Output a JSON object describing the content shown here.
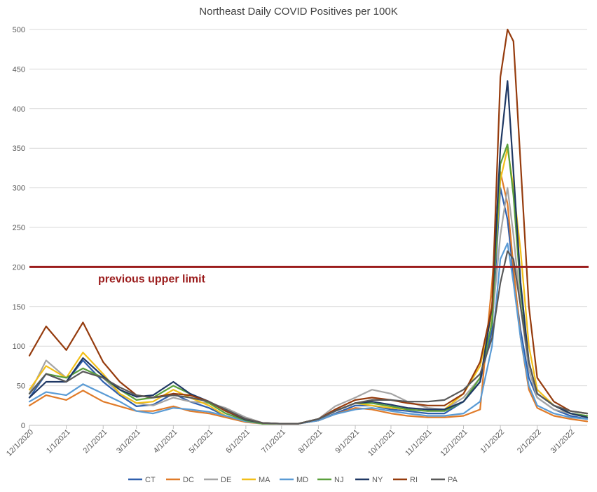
{
  "chart_data": {
    "type": "line",
    "title": "Northeast Daily COVID Positives per 100K",
    "xlabel": "",
    "ylabel": "",
    "ylim": [
      0,
      500
    ],
    "yticks": [
      0,
      50,
      100,
      150,
      200,
      250,
      300,
      350,
      400,
      450,
      500
    ],
    "xlim": [
      "2020-12-01",
      "2022-03-15"
    ],
    "xticks": [
      "12/1/2020",
      "1/1/2021",
      "2/1/2021",
      "3/1/2021",
      "4/1/2021",
      "5/1/2021",
      "6/1/2021",
      "7/1/2021",
      "8/1/2021",
      "9/1/2021",
      "10/1/2021",
      "11/1/2021",
      "12/1/2021",
      "1/1/2022",
      "2/1/2022",
      "3/1/2022"
    ],
    "grid": true,
    "legend_position": "bottom",
    "annotation": {
      "text": "previous upper limit",
      "y": 200,
      "color": "#9b1c1c"
    },
    "x": [
      "2020-12-01",
      "2020-12-15",
      "2021-01-01",
      "2021-01-15",
      "2021-02-01",
      "2021-02-15",
      "2021-03-01",
      "2021-03-15",
      "2021-04-01",
      "2021-04-15",
      "2021-05-01",
      "2021-05-15",
      "2021-06-01",
      "2021-06-15",
      "2021-07-01",
      "2021-07-15",
      "2021-08-01",
      "2021-08-15",
      "2021-09-01",
      "2021-09-15",
      "2021-10-01",
      "2021-10-15",
      "2021-11-01",
      "2021-11-15",
      "2021-12-01",
      "2021-12-15",
      "2021-12-25",
      "2022-01-01",
      "2022-01-07",
      "2022-01-12",
      "2022-01-18",
      "2022-01-25",
      "2022-02-01",
      "2022-02-15",
      "2022-03-01",
      "2022-03-15"
    ],
    "series": [
      {
        "name": "CT",
        "color": "#2e5fad",
        "values": [
          35,
          65,
          55,
          82,
          55,
          38,
          24,
          26,
          40,
          30,
          22,
          12,
          5,
          2,
          2,
          2,
          6,
          15,
          25,
          25,
          20,
          18,
          15,
          15,
          30,
          55,
          120,
          300,
          260,
          190,
          120,
          60,
          35,
          20,
          12,
          8
        ]
      },
      {
        "name": "DC",
        "color": "#e07b29",
        "values": [
          25,
          38,
          32,
          44,
          30,
          24,
          18,
          18,
          24,
          18,
          15,
          10,
          4,
          2,
          2,
          2,
          6,
          14,
          22,
          20,
          15,
          12,
          10,
          10,
          12,
          20,
          180,
          320,
          280,
          200,
          110,
          45,
          22,
          12,
          8,
          5
        ]
      },
      {
        "name": "DE",
        "color": "#a5a5a5",
        "values": [
          40,
          82,
          60,
          72,
          60,
          40,
          28,
          25,
          35,
          30,
          28,
          22,
          10,
          3,
          2,
          2,
          8,
          24,
          35,
          45,
          40,
          30,
          22,
          20,
          35,
          60,
          130,
          240,
          300,
          240,
          150,
          70,
          35,
          20,
          15,
          12
        ]
      },
      {
        "name": "MA",
        "color": "#f2bf1a",
        "values": [
          45,
          75,
          60,
          92,
          65,
          40,
          28,
          30,
          45,
          35,
          25,
          12,
          5,
          2,
          2,
          2,
          8,
          18,
          28,
          25,
          22,
          20,
          18,
          20,
          40,
          75,
          140,
          310,
          350,
          300,
          220,
          100,
          45,
          25,
          15,
          10
        ]
      },
      {
        "name": "MD",
        "color": "#5a9bd5",
        "values": [
          30,
          42,
          38,
          52,
          40,
          30,
          18,
          15,
          22,
          20,
          17,
          12,
          5,
          2,
          2,
          2,
          6,
          14,
          20,
          22,
          18,
          15,
          12,
          12,
          15,
          30,
          100,
          210,
          230,
          180,
          110,
          50,
          25,
          15,
          10,
          8
        ]
      },
      {
        "name": "NJ",
        "color": "#5aa03c",
        "values": [
          40,
          65,
          60,
          72,
          60,
          45,
          32,
          35,
          50,
          40,
          28,
          15,
          6,
          2,
          2,
          2,
          8,
          18,
          28,
          28,
          24,
          20,
          18,
          18,
          30,
          60,
          130,
          330,
          355,
          290,
          170,
          80,
          40,
          25,
          15,
          12
        ]
      },
      {
        "name": "NY",
        "color": "#1f3864",
        "values": [
          35,
          55,
          55,
          85,
          62,
          45,
          36,
          38,
          55,
          40,
          30,
          18,
          7,
          3,
          2,
          2,
          8,
          18,
          28,
          30,
          26,
          22,
          20,
          20,
          30,
          55,
          150,
          350,
          435,
          320,
          180,
          80,
          40,
          25,
          15,
          10
        ]
      },
      {
        "name": "RI",
        "color": "#953b0d",
        "values": [
          88,
          125,
          95,
          130,
          80,
          55,
          38,
          35,
          40,
          38,
          30,
          18,
          8,
          3,
          2,
          2,
          8,
          20,
          32,
          35,
          32,
          28,
          25,
          25,
          40,
          80,
          150,
          440,
          500,
          485,
          330,
          150,
          60,
          30,
          18,
          15
        ]
      },
      {
        "name": "PA",
        "color": "#595959",
        "values": [
          40,
          65,
          55,
          68,
          60,
          48,
          38,
          35,
          38,
          35,
          30,
          20,
          8,
          3,
          2,
          2,
          8,
          18,
          28,
          32,
          32,
          30,
          30,
          32,
          45,
          65,
          110,
          180,
          220,
          210,
          150,
          80,
          40,
          25,
          18,
          15
        ]
      }
    ]
  }
}
